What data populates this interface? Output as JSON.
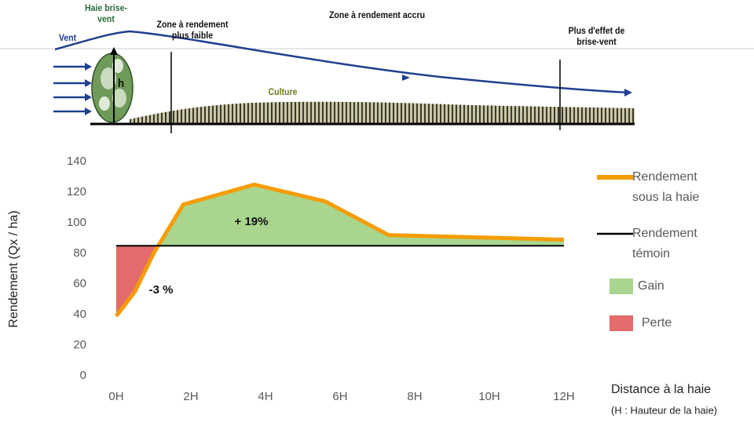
{
  "illustration": {
    "hedge_label": "Haie brise-vent",
    "wind_label": "Vent",
    "height_label": "h",
    "zone_low": "Zone à rendement plus faible",
    "zone_high": "Zone à rendement accru",
    "zone_end": "Plus d'effet de brise-vent",
    "crop_label": "Culture"
  },
  "chart_data": {
    "type": "line",
    "y_label": "Rendement (Qx / ha)",
    "x_label": "Distance à la haie",
    "x_label_note": "(H : Hauteur de la haie)",
    "series": [
      {
        "name": "Rendement sous la haie",
        "color": "#f59c00",
        "x": [
          0,
          0.5,
          1,
          1.8,
          3.7,
          5.6,
          7.3,
          12
        ],
        "values": [
          39,
          55,
          80,
          112,
          125,
          114,
          92,
          89
        ]
      },
      {
        "name": "Rendement témoin",
        "color": "#000000",
        "x": [
          0,
          12
        ],
        "values": [
          85,
          85
        ]
      }
    ],
    "areas": [
      {
        "name": "Gain",
        "color": "#a9d58e"
      },
      {
        "name": "Perte",
        "color": "#e46b6b"
      }
    ],
    "annotations": [
      "+ 19%",
      "-3 %"
    ],
    "xlim": [
      0,
      12
    ],
    "xticks": [
      {
        "value": 0,
        "label": "0H"
      },
      {
        "value": 2,
        "label": "2H"
      },
      {
        "value": 4,
        "label": "4H"
      },
      {
        "value": 6,
        "label": "6H"
      },
      {
        "value": 8,
        "label": "8H"
      },
      {
        "value": 10,
        "label": "10H"
      },
      {
        "value": 12,
        "label": "12H"
      }
    ],
    "ylim": [
      0,
      140
    ],
    "yticks": [
      0,
      20,
      40,
      60,
      80,
      100,
      120,
      140
    ]
  }
}
